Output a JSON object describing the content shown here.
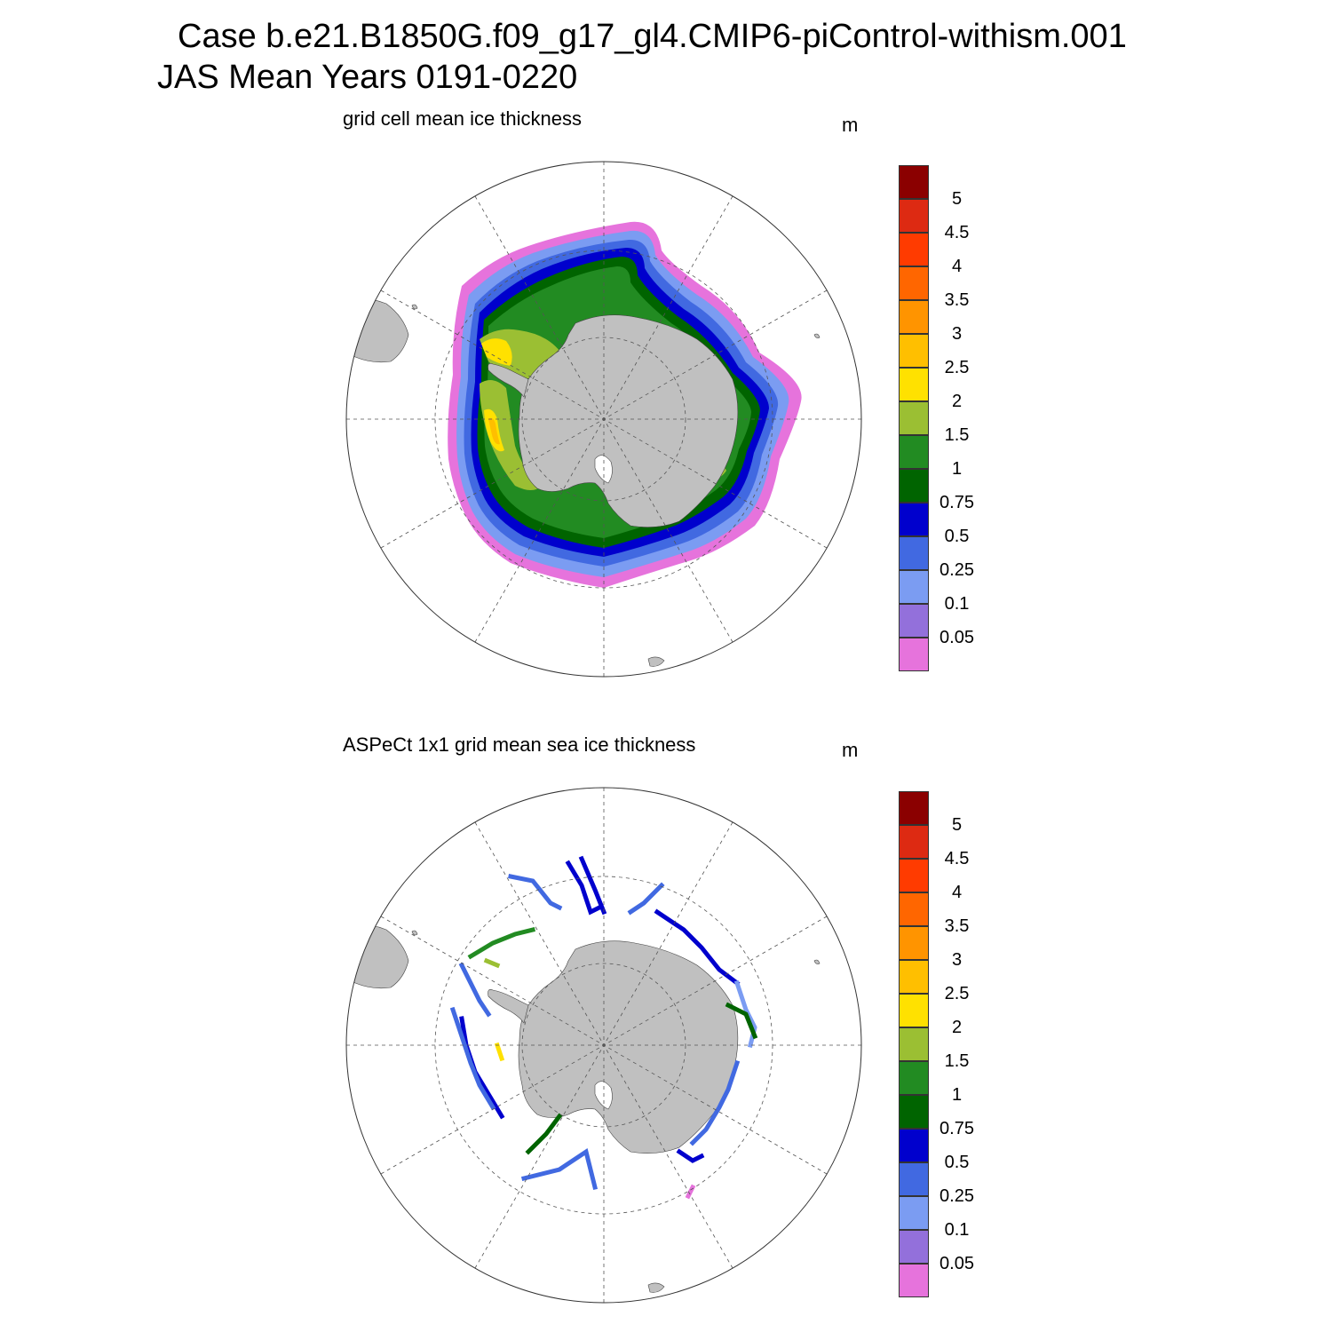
{
  "header": {
    "case": "Case b.e21.B1850G.f09_g17_gl4.CMIP6-piControl-withism.001",
    "period": "JAS Mean   Years 0191-0220"
  },
  "panels": [
    {
      "title": "grid cell mean ice thickness",
      "units": "m"
    },
    {
      "title": "ASPeCt 1x1 grid mean sea ice thickness",
      "units": "m"
    }
  ],
  "colorbar": {
    "labels": [
      "5",
      "4.5",
      "4",
      "3.5",
      "3",
      "2.5",
      "2",
      "1.5",
      "1",
      "0.75",
      "0.5",
      "0.25",
      "0.1",
      "0.05"
    ],
    "colors": [
      "#8b0000",
      "#dd2a12",
      "#ff3b00",
      "#ff6600",
      "#ff9400",
      "#ffbf00",
      "#ffe100",
      "#9bbf33",
      "#228b22",
      "#006400",
      "#0000cd",
      "#4169e1",
      "#7b9cf2",
      "#9370db",
      "#e673dc"
    ]
  },
  "map_style": {
    "land": "#c0c0c0",
    "grid": "#555555",
    "ocean": "#ffffff"
  }
}
